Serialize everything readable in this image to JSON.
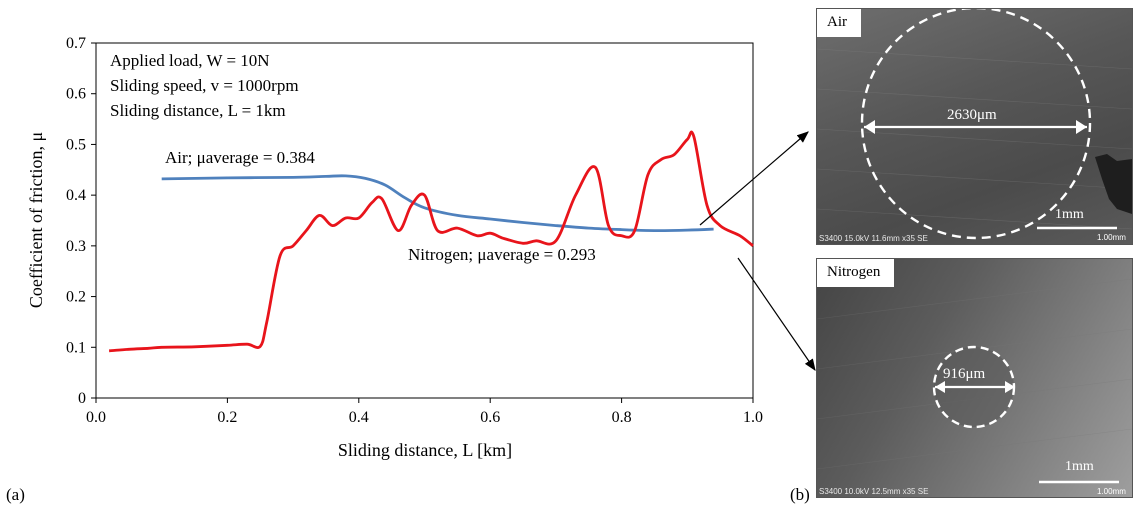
{
  "panel_a_label": "(a)",
  "panel_b_label": "(b)",
  "chart_data": {
    "type": "line",
    "xlabel": "Sliding distance, L [km]",
    "ylabel": "Coefficient of friction, μ",
    "xlim": [
      0,
      1.0
    ],
    "ylim": [
      0,
      0.7
    ],
    "x_ticks": [
      "0.0",
      "0.2",
      "0.4",
      "0.6",
      "0.8",
      "1.0"
    ],
    "y_ticks": [
      "0",
      "0.1",
      "0.2",
      "0.3",
      "0.4",
      "0.5",
      "0.6",
      "0.7"
    ],
    "grid": false,
    "conditions": [
      "Applied load, W = 10N",
      "Sliding speed, v = 1000rpm",
      "Sliding distance, L = 1km"
    ],
    "series": [
      {
        "name": "Air; μaverage = 0.384",
        "color": "#4f81bd",
        "x": [
          0.1,
          0.2,
          0.3,
          0.35,
          0.38,
          0.41,
          0.44,
          0.47,
          0.5,
          0.55,
          0.6,
          0.65,
          0.7,
          0.75,
          0.8,
          0.85,
          0.9,
          0.94
        ],
        "y": [
          0.432,
          0.434,
          0.435,
          0.437,
          0.438,
          0.433,
          0.42,
          0.395,
          0.375,
          0.36,
          0.353,
          0.346,
          0.34,
          0.335,
          0.332,
          0.33,
          0.331,
          0.333
        ]
      },
      {
        "name": "Nitrogen; μaverage = 0.293",
        "color": "#e8141b",
        "x": [
          0.02,
          0.05,
          0.08,
          0.1,
          0.15,
          0.2,
          0.23,
          0.25,
          0.26,
          0.28,
          0.3,
          0.32,
          0.34,
          0.36,
          0.38,
          0.4,
          0.42,
          0.435,
          0.46,
          0.48,
          0.5,
          0.52,
          0.55,
          0.58,
          0.6,
          0.62,
          0.65,
          0.67,
          0.7,
          0.73,
          0.76,
          0.78,
          0.8,
          0.82,
          0.84,
          0.86,
          0.88,
          0.9,
          0.91,
          0.93,
          0.95,
          0.98,
          1.0
        ],
        "y": [
          0.093,
          0.096,
          0.098,
          0.1,
          0.101,
          0.104,
          0.106,
          0.102,
          0.15,
          0.28,
          0.3,
          0.33,
          0.36,
          0.34,
          0.355,
          0.355,
          0.385,
          0.393,
          0.33,
          0.38,
          0.4,
          0.33,
          0.335,
          0.32,
          0.325,
          0.315,
          0.305,
          0.31,
          0.31,
          0.4,
          0.455,
          0.34,
          0.32,
          0.33,
          0.44,
          0.47,
          0.48,
          0.51,
          0.515,
          0.38,
          0.34,
          0.32,
          0.3
        ]
      }
    ]
  },
  "sem": {
    "air": {
      "label": "Air",
      "measurement": "2630μm",
      "scale_label": "1mm",
      "scale_value": "1.00mm",
      "info": "S3400 15.0kV 11.6mm x35 SE"
    },
    "nitrogen": {
      "label": "Nitrogen",
      "measurement": "916μm",
      "scale_label": "1mm",
      "scale_value": "1.00mm",
      "info": "S3400 10.0kV 12.5mm x35 SE"
    }
  }
}
